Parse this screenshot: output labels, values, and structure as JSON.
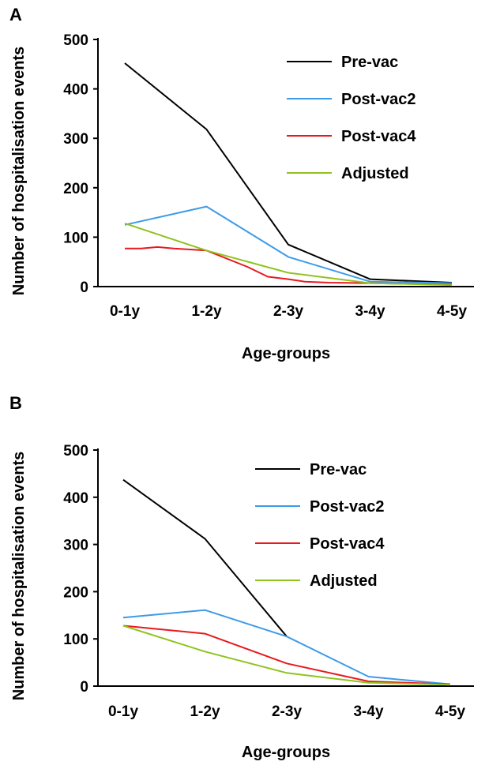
{
  "chart_data": [
    {
      "type": "line",
      "panel_label": "A",
      "categories": [
        "0-1y",
        "1-2y",
        "2-3y",
        "3-4y",
        "4-5y"
      ],
      "xlabel": "Age-groups",
      "ylabel": "Number of hospitalisation events",
      "ylim": [
        0,
        500
      ],
      "yticks": [
        0,
        100,
        200,
        300,
        400,
        500
      ],
      "legend_position": "top-right",
      "series": [
        {
          "name": "Pre-vac",
          "color": "#000000",
          "x": [
            0,
            1,
            2,
            3,
            4
          ],
          "values": [
            452,
            318,
            85,
            15,
            8
          ]
        },
        {
          "name": "Post-vac2",
          "color": "#3d9be9",
          "x": [
            0,
            1,
            2,
            3,
            4
          ],
          "values": [
            125,
            162,
            60,
            10,
            7
          ]
        },
        {
          "name": "Post-vac4",
          "color": "#e8191e",
          "x": [
            0,
            0.2,
            0.4,
            0.6,
            1,
            1.5,
            1.75,
            2,
            2.2,
            2.5,
            3,
            4
          ],
          "values": [
            77,
            77,
            80,
            77,
            73,
            40,
            20,
            15,
            10,
            8,
            7,
            4
          ]
        },
        {
          "name": "Adjusted",
          "color": "#8fc31f",
          "x": [
            0,
            1,
            2,
            3,
            4
          ],
          "values": [
            128,
            73,
            28,
            7,
            3
          ]
        }
      ]
    },
    {
      "type": "line",
      "panel_label": "B",
      "categories": [
        "0-1y",
        "1-2y",
        "2-3y",
        "3-4y",
        "4-5y"
      ],
      "xlabel": "Age-groups",
      "ylabel": "Number of hospitalisation events",
      "ylim": [
        0,
        500
      ],
      "yticks": [
        0,
        100,
        200,
        300,
        400,
        500
      ],
      "legend_position": "top-right",
      "series": [
        {
          "name": "Pre-vac",
          "color": "#000000",
          "x": [
            0,
            1,
            2
          ],
          "values": [
            437,
            312,
            105
          ]
        },
        {
          "name": "Post-vac2",
          "color": "#3d9be9",
          "x": [
            0,
            1,
            2,
            3,
            4
          ],
          "values": [
            145,
            161,
            105,
            20,
            4
          ]
        },
        {
          "name": "Post-vac4",
          "color": "#e8191e",
          "x": [
            0,
            1,
            2,
            3,
            4
          ],
          "values": [
            128,
            111,
            48,
            10,
            4
          ]
        },
        {
          "name": "Adjusted",
          "color": "#8fc31f",
          "x": [
            0,
            1,
            2,
            3,
            4
          ],
          "values": [
            128,
            73,
            28,
            7,
            3
          ]
        }
      ]
    }
  ]
}
